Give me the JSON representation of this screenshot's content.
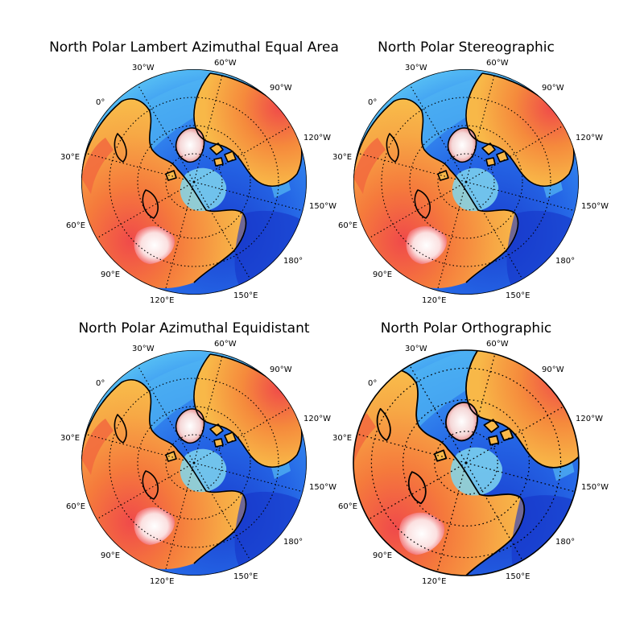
{
  "figure": {
    "maps": [
      {
        "title": "North Polar Lambert Azimuthal Equal Area",
        "projection": "lambert-azimuthal-equal-area",
        "meridian_labels": [
          "30°W",
          "60°W",
          "0°",
          "90°W",
          "120°W",
          "30°E",
          "150°W",
          "60°E",
          "180°",
          "90°E",
          "150°E",
          "120°E"
        ]
      },
      {
        "title": "North Polar Stereographic",
        "projection": "stereographic",
        "meridian_labels": [
          "30°W",
          "60°W",
          "0°",
          "90°W",
          "120°W",
          "30°E",
          "150°W",
          "60°E",
          "180°",
          "90°E",
          "150°E",
          "120°E"
        ]
      },
      {
        "title": "North Polar Azimuthal Equidistant",
        "projection": "azimuthal-equidistant",
        "meridian_labels": [
          "30°W",
          "60°W",
          "0°",
          "90°W",
          "120°W",
          "30°E",
          "150°W",
          "60°E",
          "180°",
          "90°E",
          "150°E",
          "120°E"
        ]
      },
      {
        "title": "North Polar Orthographic",
        "projection": "orthographic",
        "meridian_labels": [
          "30°W",
          "60°W",
          "0°",
          "90°W",
          "120°W",
          "30°E",
          "150°W",
          "60°E",
          "180°",
          "90°E",
          "150°E",
          "120°E"
        ]
      }
    ],
    "colors": {
      "deep_ocean": "#1533c8",
      "ocean": "#2f7ff0",
      "shelf": "#5cc8f5",
      "arctic_shallow": "#7fd6ee",
      "lowland": "#f7b545",
      "upland": "#f0743e",
      "highland": "#f04a4a",
      "ice": "#f8ecec",
      "coastline": "#000000",
      "graticule": "#000000"
    }
  }
}
